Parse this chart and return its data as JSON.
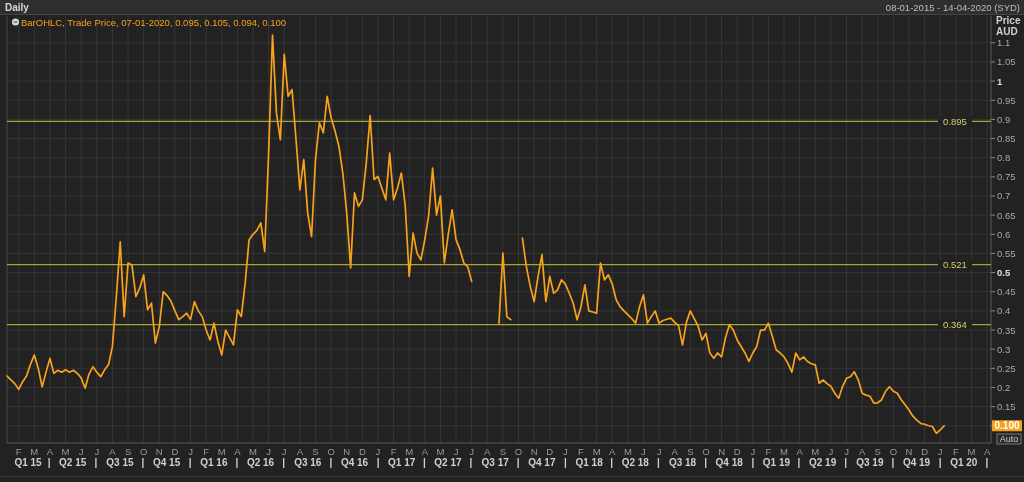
{
  "chart_data": {
    "type": "line",
    "title": "Daily",
    "subtitle": "08-01-2015 - 14-04-2020 (SYD)",
    "ylabel": "Price AUD",
    "categories": [
      null,
      null,
      null,
      "F",
      null,
      null,
      null,
      "M",
      null,
      null,
      null,
      "A",
      null,
      null,
      null,
      "M",
      null,
      null,
      null,
      "J",
      null,
      null,
      null,
      "J",
      null,
      null,
      null,
      "A",
      null,
      null,
      null,
      "S",
      null,
      null,
      null,
      "O",
      null,
      null,
      null,
      "N",
      null,
      null,
      null,
      "D",
      null,
      null,
      null,
      "J",
      null,
      null,
      null,
      "F",
      null,
      null,
      null,
      "M",
      null,
      null,
      null,
      "A",
      null,
      null,
      null,
      "M",
      null,
      null,
      null,
      "J",
      null,
      null,
      null,
      "J",
      null,
      null,
      null,
      "A",
      null,
      null,
      null,
      "S",
      null,
      null,
      null,
      "O",
      null,
      null,
      null,
      "N",
      null,
      null,
      null,
      "D",
      null,
      null,
      null,
      "J",
      null,
      null,
      null,
      "F",
      null,
      null,
      null,
      "M",
      null,
      null,
      null,
      "A",
      null,
      null,
      null,
      "M",
      null,
      null,
      null,
      "J",
      null,
      null,
      null,
      "J",
      null,
      null,
      null,
      "A",
      null,
      null,
      null,
      "S",
      null,
      null,
      null,
      "O",
      null,
      null,
      null,
      "N",
      null,
      null,
      null,
      "D",
      null,
      null,
      null,
      "J",
      null,
      null,
      null,
      "F",
      null,
      null,
      null,
      "M",
      null,
      null,
      null,
      "A",
      null,
      null,
      null,
      "M",
      null,
      null,
      null,
      "J",
      null,
      null,
      null,
      "J",
      null,
      null,
      null,
      "A",
      null,
      null,
      null,
      "S",
      null,
      null,
      null,
      "O",
      null,
      null,
      null,
      "N",
      null,
      null,
      null,
      "D",
      null,
      null,
      null,
      "J",
      null,
      null,
      null,
      "F",
      null,
      null,
      null,
      "M",
      null,
      null,
      null,
      "A",
      null,
      null,
      null,
      "M",
      null,
      null,
      null,
      "J",
      null,
      null,
      null,
      "J",
      null,
      null,
      null,
      "A",
      null,
      null,
      null,
      "S",
      null,
      null,
      null,
      "O",
      null,
      null,
      null,
      "N",
      null,
      null,
      null,
      "D",
      null,
      null,
      null,
      "J",
      null,
      null,
      null,
      "F",
      null,
      null,
      null,
      "M",
      null,
      null,
      null,
      "A",
      null
    ],
    "series": [
      {
        "name": "BarOHLC, Trade Price, 07-01-2020, 0.095, 0.105, 0.094, 0.100",
        "color": "#f7a21b",
        "values": [
          0.23,
          0.22,
          0.21,
          0.195,
          0.215,
          0.23,
          0.26,
          0.285,
          0.25,
          0.202,
          0.24,
          0.276,
          0.237,
          0.245,
          0.24,
          0.246,
          0.24,
          0.245,
          0.237,
          0.225,
          0.198,
          0.235,
          0.254,
          0.24,
          0.228,
          0.246,
          0.26,
          0.307,
          0.437,
          0.58,
          0.385,
          0.525,
          0.52,
          0.437,
          0.46,
          0.494,
          0.403,
          0.42,
          0.316,
          0.359,
          0.45,
          0.44,
          0.425,
          0.4,
          0.377,
          0.385,
          0.394,
          0.377,
          0.424,
          0.4,
          0.385,
          0.35,
          0.324,
          0.368,
          0.32,
          0.285,
          0.35,
          0.33,
          0.311,
          0.403,
          0.385,
          0.473,
          0.586,
          0.6,
          0.61,
          0.63,
          0.555,
          0.812,
          1.12,
          0.917,
          0.847,
          1.07,
          0.96,
          0.978,
          0.85,
          0.716,
          0.795,
          0.656,
          0.594,
          0.795,
          0.891,
          0.865,
          0.96,
          0.905,
          0.87,
          0.83,
          0.76,
          0.656,
          0.512,
          0.708,
          0.673,
          0.69,
          0.786,
          0.91,
          0.743,
          0.751,
          0.72,
          0.69,
          0.812,
          0.69,
          0.72,
          0.76,
          0.673,
          0.49,
          0.603,
          0.551,
          0.533,
          0.586,
          0.65,
          0.773,
          0.65,
          0.7,
          0.525,
          0.6,
          0.664,
          0.586,
          0.56,
          0.525,
          0.515,
          0.477,
          null,
          null,
          null,
          null,
          null,
          null,
          0.368,
          0.551,
          0.385,
          0.377,
          null,
          null,
          0.59,
          0.516,
          0.464,
          0.424,
          0.49,
          0.547,
          0.424,
          0.49,
          0.446,
          0.455,
          0.481,
          0.47,
          0.446,
          0.42,
          0.377,
          0.411,
          0.468,
          0.4,
          0.397,
          0.394,
          0.525,
          0.481,
          0.494,
          0.47,
          0.429,
          0.411,
          0.4,
          0.39,
          0.38,
          0.368,
          0.411,
          0.442,
          0.368,
          0.385,
          0.4,
          0.368,
          0.375,
          0.378,
          0.381,
          0.37,
          0.361,
          0.311,
          0.37,
          0.4,
          0.38,
          0.36,
          0.324,
          0.341,
          0.29,
          0.276,
          0.29,
          0.28,
          0.33,
          0.364,
          0.35,
          0.324,
          0.307,
          0.29,
          0.268,
          0.29,
          0.307,
          0.35,
          0.35,
          0.368,
          0.333,
          0.298,
          0.29,
          0.28,
          0.263,
          0.24,
          0.29,
          0.272,
          0.28,
          0.268,
          0.262,
          0.259,
          0.211,
          0.22,
          0.21,
          0.203,
          0.185,
          0.172,
          0.203,
          0.224,
          0.228,
          0.241,
          0.22,
          0.185,
          0.18,
          0.177,
          0.159,
          0.16,
          0.168,
          0.19,
          0.202,
          0.19,
          0.185,
          0.168,
          0.155,
          0.141,
          0.125,
          0.115,
          0.106,
          0.104,
          0.1,
          0.098,
          0.08,
          0.089,
          0.1,
          null,
          null,
          null,
          null,
          null,
          null,
          null,
          null,
          null,
          null,
          null,
          null
        ]
      }
    ],
    "x2lim": [
      "2015-01-08",
      "2020-04-08"
    ],
    "x2ticks": [
      {
        "value": "2015-02-18",
        "label": "Q1 15"
      },
      {
        "value": "2015-03-31",
        "label": "|"
      },
      {
        "value": "2015-05-16",
        "label": "Q2 15"
      },
      {
        "value": "2015-06-30",
        "label": "|"
      },
      {
        "value": "2015-08-16",
        "label": "Q3 15"
      },
      {
        "value": "2015-09-30",
        "label": "|"
      },
      {
        "value": "2015-11-15",
        "label": "Q4 15"
      },
      {
        "value": "2015-12-31",
        "label": "|"
      },
      {
        "value": "2016-02-15",
        "label": "Q1 16"
      },
      {
        "value": "2016-03-31",
        "label": "|"
      },
      {
        "value": "2016-05-16",
        "label": "Q2 16"
      },
      {
        "value": "2016-06-30",
        "label": "|"
      },
      {
        "value": "2016-08-16",
        "label": "Q3 16"
      },
      {
        "value": "2016-09-30",
        "label": "|"
      },
      {
        "value": "2016-11-15",
        "label": "Q4 16"
      },
      {
        "value": "2016-12-31",
        "label": "|"
      },
      {
        "value": "2017-02-15",
        "label": "Q1 17"
      },
      {
        "value": "2017-03-31",
        "label": "|"
      },
      {
        "value": "2017-05-16",
        "label": "Q2 17"
      },
      {
        "value": "2017-06-30",
        "label": "|"
      },
      {
        "value": "2017-08-16",
        "label": "Q3 17"
      },
      {
        "value": "2017-09-30",
        "label": "|"
      },
      {
        "value": "2017-11-15",
        "label": "Q4 17"
      },
      {
        "value": "2017-12-31",
        "label": "|"
      },
      {
        "value": "2018-02-15",
        "label": "Q1 18"
      },
      {
        "value": "2018-03-31",
        "label": "|"
      },
      {
        "value": "2018-05-16",
        "label": "Q2 18"
      },
      {
        "value": "2018-06-30",
        "label": "|"
      },
      {
        "value": "2018-08-16",
        "label": "Q3 18"
      },
      {
        "value": "2018-09-30",
        "label": "|"
      },
      {
        "value": "2018-11-15",
        "label": "Q4 18"
      },
      {
        "value": "2018-12-31",
        "label": "|"
      },
      {
        "value": "2019-02-15",
        "label": "Q1 19"
      },
      {
        "value": "2019-03-31",
        "label": "|"
      },
      {
        "value": "2019-05-16",
        "label": "Q2 19"
      },
      {
        "value": "2019-06-30",
        "label": "|"
      },
      {
        "value": "2019-08-16",
        "label": "Q3 19"
      },
      {
        "value": "2019-09-30",
        "label": "|"
      },
      {
        "value": "2019-11-15",
        "label": "Q4 19"
      },
      {
        "value": "2019-12-31",
        "label": "|"
      },
      {
        "value": "2020-02-15",
        "label": "Q1 20"
      },
      {
        "value": "2020-03-31",
        "label": "|"
      }
    ],
    "ylim": [
      0.055,
      1.17
    ],
    "yticks": [
      {
        "value": 0.1,
        "label": "0.100"
      },
      0.15,
      0.2,
      0.25,
      0.3,
      0.35,
      0.4,
      0.45,
      0.5,
      0.55,
      0.6,
      0.65,
      0.7,
      0.75,
      0.8,
      0.85,
      0.9,
      0.95,
      1,
      1.05,
      1.1
    ],
    "grid": true,
    "legend": "top left",
    "ref_lines": [
      {
        "axis": "y",
        "value": 0.895,
        "label": "0.895",
        "color": "#a8a43a"
      },
      {
        "axis": "y",
        "value": 0.521,
        "label": "0.521",
        "color": "#a8a43a"
      },
      {
        "axis": "y",
        "value": 0.364,
        "label": "0.364",
        "color": "#a8a43a"
      }
    ],
    "annotations": [
      "Auto"
    ]
  }
}
